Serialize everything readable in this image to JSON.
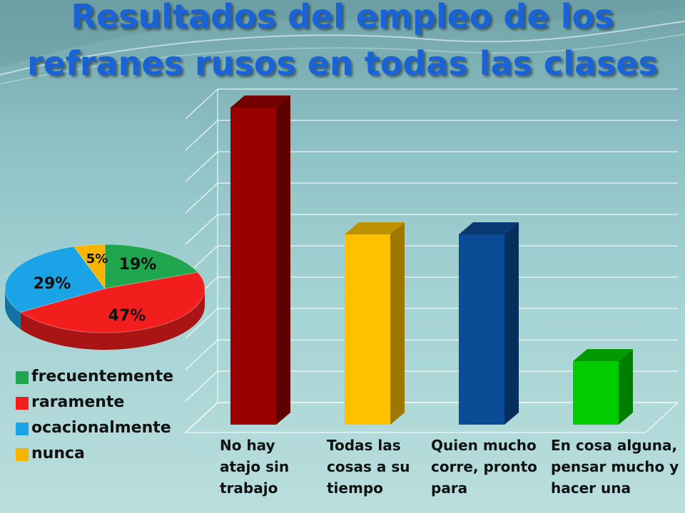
{
  "title": "Resultados del empleo de los\nrefranes rusos en todas las clases",
  "chart_data": [
    {
      "type": "pie",
      "slices": [
        {
          "name": "frecuentemente",
          "value": 19,
          "label": "19%",
          "color": "#1fa64e"
        },
        {
          "name": "raramente",
          "value": 47,
          "label": "47%",
          "color": "#f21d1d"
        },
        {
          "name": "ocacionalmente",
          "value": 29,
          "label": "29%",
          "color": "#1aa3e6"
        },
        {
          "name": "nunca",
          "value": 5,
          "label": "5%",
          "color": "#f7b500"
        }
      ],
      "legend": "bottom-left"
    },
    {
      "type": "bar",
      "categories": [
        "No hay atajo sin trabajo",
        "Todas las cosas a su tiempo",
        "Quien mucho corre, pronto para",
        "En cosa alguna, pensar mucho y hacer una"
      ],
      "values": [
        10,
        6,
        6,
        2
      ],
      "colors": [
        "#9a0000",
        "#ffc000",
        "#0b4c96",
        "#00cc00"
      ],
      "ylim": [
        0,
        10
      ],
      "grid": true
    }
  ]
}
